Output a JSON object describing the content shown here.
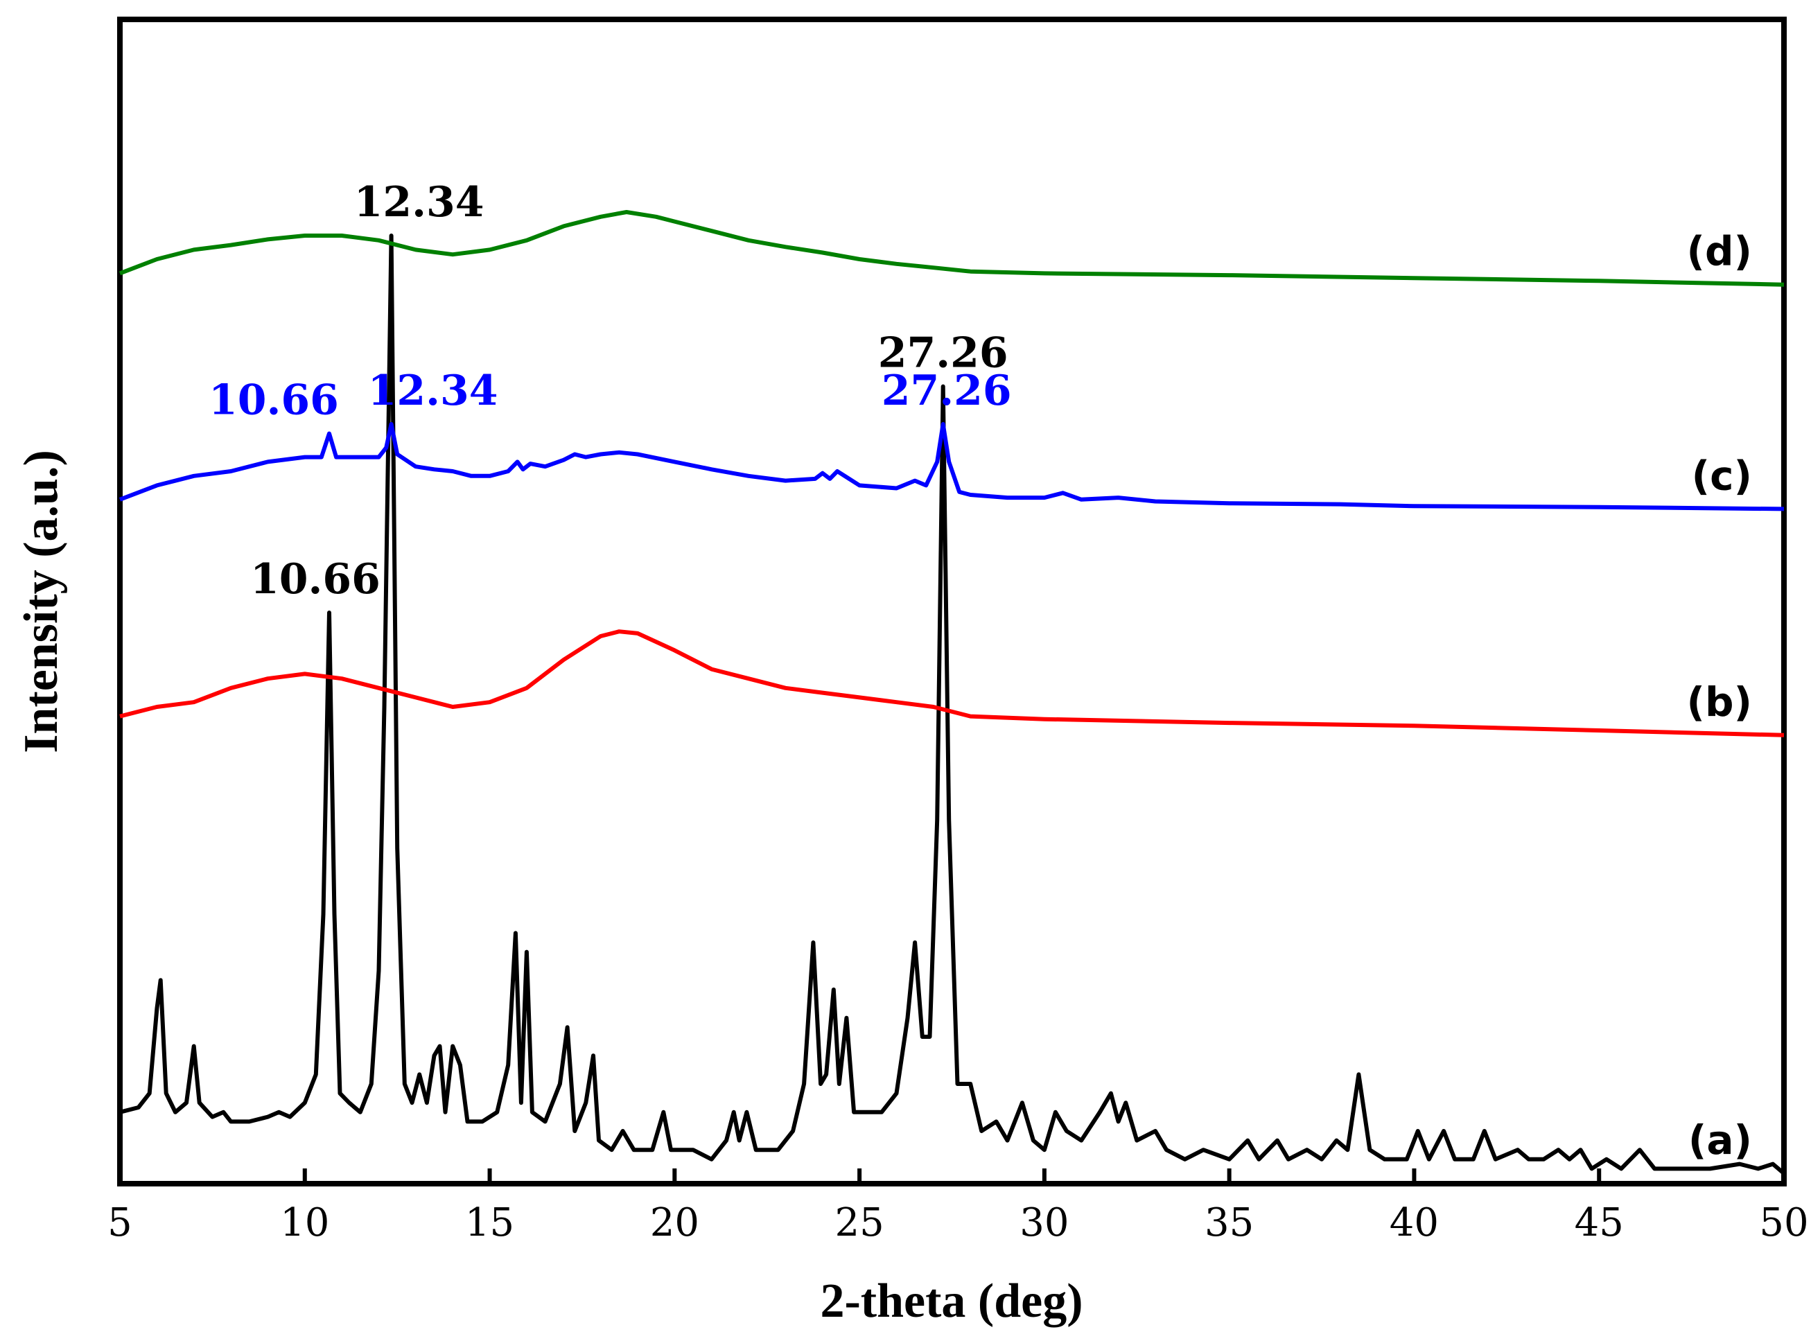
{
  "chart_data": {
    "type": "line",
    "title": "",
    "xlabel": "2-theta (deg)",
    "ylabel": "Intensity (a.u.)",
    "xlim": [
      5,
      50
    ],
    "xticks": [
      5,
      10,
      15,
      20,
      25,
      30,
      35,
      40,
      45,
      50
    ],
    "grid": false,
    "legend": "labels at right end of each trace",
    "series": [
      {
        "name": "(a)",
        "color": "#000000",
        "points": [
          [
            5,
            0.07
          ],
          [
            5.5,
            0.075
          ],
          [
            5.8,
            0.09
          ],
          [
            6.0,
            0.18
          ],
          [
            6.1,
            0.21
          ],
          [
            6.25,
            0.09
          ],
          [
            6.5,
            0.07
          ],
          [
            6.8,
            0.08
          ],
          [
            7.0,
            0.14
          ],
          [
            7.15,
            0.08
          ],
          [
            7.5,
            0.065
          ],
          [
            7.8,
            0.07
          ],
          [
            8.0,
            0.06
          ],
          [
            8.5,
            0.06
          ],
          [
            9.0,
            0.065
          ],
          [
            9.3,
            0.07
          ],
          [
            9.6,
            0.065
          ],
          [
            10.0,
            0.08
          ],
          [
            10.3,
            0.11
          ],
          [
            10.5,
            0.28
          ],
          [
            10.66,
            0.6
          ],
          [
            10.8,
            0.28
          ],
          [
            10.95,
            0.09
          ],
          [
            11.2,
            0.08
          ],
          [
            11.5,
            0.07
          ],
          [
            11.8,
            0.1
          ],
          [
            12.0,
            0.22
          ],
          [
            12.15,
            0.5
          ],
          [
            12.34,
            1.0
          ],
          [
            12.5,
            0.35
          ],
          [
            12.7,
            0.1
          ],
          [
            12.9,
            0.08
          ],
          [
            13.1,
            0.11
          ],
          [
            13.3,
            0.08
          ],
          [
            13.5,
            0.13
          ],
          [
            13.65,
            0.14
          ],
          [
            13.8,
            0.07
          ],
          [
            14.0,
            0.14
          ],
          [
            14.2,
            0.12
          ],
          [
            14.4,
            0.06
          ],
          [
            14.8,
            0.06
          ],
          [
            15.2,
            0.07
          ],
          [
            15.5,
            0.12
          ],
          [
            15.7,
            0.26
          ],
          [
            15.85,
            0.08
          ],
          [
            16.0,
            0.24
          ],
          [
            16.15,
            0.07
          ],
          [
            16.5,
            0.06
          ],
          [
            16.9,
            0.1
          ],
          [
            17.1,
            0.16
          ],
          [
            17.3,
            0.05
          ],
          [
            17.6,
            0.08
          ],
          [
            17.8,
            0.13
          ],
          [
            17.95,
            0.04
          ],
          [
            18.3,
            0.03
          ],
          [
            18.6,
            0.05
          ],
          [
            18.9,
            0.03
          ],
          [
            19.4,
            0.03
          ],
          [
            19.7,
            0.07
          ],
          [
            19.9,
            0.03
          ],
          [
            20.5,
            0.03
          ],
          [
            21.0,
            0.02
          ],
          [
            21.4,
            0.04
          ],
          [
            21.6,
            0.07
          ],
          [
            21.75,
            0.04
          ],
          [
            21.95,
            0.07
          ],
          [
            22.2,
            0.03
          ],
          [
            22.8,
            0.03
          ],
          [
            23.2,
            0.05
          ],
          [
            23.5,
            0.1
          ],
          [
            23.75,
            0.25
          ],
          [
            23.95,
            0.1
          ],
          [
            24.1,
            0.11
          ],
          [
            24.3,
            0.2
          ],
          [
            24.45,
            0.1
          ],
          [
            24.65,
            0.17
          ],
          [
            24.85,
            0.07
          ],
          [
            25.2,
            0.07
          ],
          [
            25.6,
            0.07
          ],
          [
            26.0,
            0.09
          ],
          [
            26.3,
            0.17
          ],
          [
            26.5,
            0.25
          ],
          [
            26.7,
            0.15
          ],
          [
            26.9,
            0.15
          ],
          [
            27.1,
            0.38
          ],
          [
            27.26,
            0.84
          ],
          [
            27.42,
            0.38
          ],
          [
            27.65,
            0.1
          ],
          [
            28.0,
            0.1
          ],
          [
            28.3,
            0.05
          ],
          [
            28.7,
            0.06
          ],
          [
            29.0,
            0.04
          ],
          [
            29.4,
            0.08
          ],
          [
            29.7,
            0.04
          ],
          [
            30.0,
            0.03
          ],
          [
            30.3,
            0.07
          ],
          [
            30.6,
            0.05
          ],
          [
            31.0,
            0.04
          ],
          [
            31.5,
            0.07
          ],
          [
            31.8,
            0.09
          ],
          [
            32.0,
            0.06
          ],
          [
            32.2,
            0.08
          ],
          [
            32.5,
            0.04
          ],
          [
            33.0,
            0.05
          ],
          [
            33.3,
            0.03
          ],
          [
            33.8,
            0.02
          ],
          [
            34.3,
            0.03
          ],
          [
            35.0,
            0.02
          ],
          [
            35.5,
            0.04
          ],
          [
            35.8,
            0.02
          ],
          [
            36.3,
            0.04
          ],
          [
            36.6,
            0.02
          ],
          [
            37.1,
            0.03
          ],
          [
            37.5,
            0.02
          ],
          [
            37.9,
            0.04
          ],
          [
            38.2,
            0.03
          ],
          [
            38.5,
            0.11
          ],
          [
            38.8,
            0.03
          ],
          [
            39.2,
            0.02
          ],
          [
            39.8,
            0.02
          ],
          [
            40.1,
            0.05
          ],
          [
            40.4,
            0.02
          ],
          [
            40.8,
            0.05
          ],
          [
            41.1,
            0.02
          ],
          [
            41.6,
            0.02
          ],
          [
            41.9,
            0.05
          ],
          [
            42.2,
            0.02
          ],
          [
            42.8,
            0.03
          ],
          [
            43.1,
            0.02
          ],
          [
            43.5,
            0.02
          ],
          [
            43.9,
            0.03
          ],
          [
            44.2,
            0.02
          ],
          [
            44.5,
            0.03
          ],
          [
            44.8,
            0.01
          ],
          [
            45.2,
            0.02
          ],
          [
            45.6,
            0.01
          ],
          [
            46.1,
            0.03
          ],
          [
            46.5,
            0.01
          ],
          [
            47.2,
            0.01
          ],
          [
            48.0,
            0.01
          ],
          [
            48.8,
            0.015
          ],
          [
            49.3,
            0.01
          ],
          [
            49.7,
            0.015
          ],
          [
            50,
            0.005
          ]
        ]
      },
      {
        "name": "(b)",
        "color": "#ff0000",
        "points": [
          [
            5,
            0.49
          ],
          [
            6,
            0.5
          ],
          [
            7,
            0.505
          ],
          [
            8,
            0.52
          ],
          [
            9,
            0.53
          ],
          [
            10,
            0.535
          ],
          [
            11,
            0.53
          ],
          [
            12,
            0.52
          ],
          [
            13,
            0.51
          ],
          [
            14,
            0.5
          ],
          [
            15,
            0.505
          ],
          [
            16,
            0.52
          ],
          [
            17,
            0.55
          ],
          [
            18,
            0.575
          ],
          [
            18.5,
            0.58
          ],
          [
            19,
            0.578
          ],
          [
            20,
            0.56
          ],
          [
            21,
            0.54
          ],
          [
            22,
            0.53
          ],
          [
            23,
            0.52
          ],
          [
            24,
            0.515
          ],
          [
            25,
            0.51
          ],
          [
            26,
            0.505
          ],
          [
            27,
            0.5
          ],
          [
            28,
            0.49
          ],
          [
            30,
            0.487
          ],
          [
            35,
            0.483
          ],
          [
            40,
            0.48
          ],
          [
            45,
            0.475
          ],
          [
            50,
            0.47
          ]
        ]
      },
      {
        "name": "(c)",
        "color": "#0000ff",
        "points": [
          [
            5,
            0.72
          ],
          [
            6,
            0.735
          ],
          [
            7,
            0.745
          ],
          [
            8,
            0.75
          ],
          [
            9,
            0.76
          ],
          [
            10,
            0.765
          ],
          [
            10.45,
            0.765
          ],
          [
            10.66,
            0.79
          ],
          [
            10.85,
            0.765
          ],
          [
            11.2,
            0.765
          ],
          [
            12.0,
            0.765
          ],
          [
            12.2,
            0.775
          ],
          [
            12.34,
            0.8
          ],
          [
            12.5,
            0.768
          ],
          [
            13,
            0.755
          ],
          [
            13.5,
            0.752
          ],
          [
            14,
            0.75
          ],
          [
            14.5,
            0.745
          ],
          [
            15,
            0.745
          ],
          [
            15.5,
            0.75
          ],
          [
            15.75,
            0.76
          ],
          [
            15.9,
            0.752
          ],
          [
            16.1,
            0.758
          ],
          [
            16.5,
            0.755
          ],
          [
            17,
            0.762
          ],
          [
            17.3,
            0.768
          ],
          [
            17.6,
            0.765
          ],
          [
            18,
            0.768
          ],
          [
            18.5,
            0.77
          ],
          [
            19,
            0.768
          ],
          [
            20,
            0.76
          ],
          [
            21,
            0.752
          ],
          [
            22,
            0.745
          ],
          [
            23,
            0.74
          ],
          [
            23.8,
            0.742
          ],
          [
            24.0,
            0.748
          ],
          [
            24.2,
            0.742
          ],
          [
            24.4,
            0.75
          ],
          [
            24.6,
            0.745
          ],
          [
            25,
            0.735
          ],
          [
            26,
            0.732
          ],
          [
            26.5,
            0.74
          ],
          [
            26.8,
            0.735
          ],
          [
            27.1,
            0.76
          ],
          [
            27.26,
            0.8
          ],
          [
            27.42,
            0.76
          ],
          [
            27.7,
            0.728
          ],
          [
            28,
            0.725
          ],
          [
            29,
            0.722
          ],
          [
            30,
            0.722
          ],
          [
            30.5,
            0.727
          ],
          [
            31,
            0.72
          ],
          [
            32,
            0.722
          ],
          [
            33,
            0.718
          ],
          [
            35,
            0.716
          ],
          [
            38,
            0.715
          ],
          [
            40,
            0.713
          ],
          [
            45,
            0.712
          ],
          [
            50,
            0.71
          ]
        ]
      },
      {
        "name": "(d)",
        "color": "#008000",
        "points": [
          [
            5,
            0.96
          ],
          [
            6,
            0.975
          ],
          [
            7,
            0.985
          ],
          [
            8,
            0.99
          ],
          [
            9,
            0.996
          ],
          [
            10,
            1.0
          ],
          [
            11,
            1.0
          ],
          [
            12,
            0.995
          ],
          [
            13,
            0.985
          ],
          [
            14,
            0.98
          ],
          [
            15,
            0.985
          ],
          [
            16,
            0.995
          ],
          [
            17,
            1.01
          ],
          [
            18,
            1.02
          ],
          [
            18.7,
            1.025
          ],
          [
            19.5,
            1.02
          ],
          [
            20,
            1.015
          ],
          [
            21,
            1.005
          ],
          [
            22,
            0.995
          ],
          [
            23,
            0.988
          ],
          [
            24,
            0.982
          ],
          [
            25,
            0.975
          ],
          [
            26,
            0.97
          ],
          [
            27,
            0.966
          ],
          [
            28,
            0.962
          ],
          [
            30,
            0.96
          ],
          [
            35,
            0.958
          ],
          [
            40,
            0.955
          ],
          [
            45,
            0.952
          ],
          [
            50,
            0.948
          ]
        ]
      }
    ],
    "annotations": [
      {
        "series": "(a)",
        "text": "10.66",
        "x": 10.66,
        "color": "#000000"
      },
      {
        "series": "(a)",
        "text": "12.34",
        "x": 12.34,
        "color": "#000000"
      },
      {
        "series": "(a)",
        "text": "27.26",
        "x": 27.26,
        "color": "#000000"
      },
      {
        "series": "(c)",
        "text": "10.66",
        "x": 10.66,
        "color": "#0000ff"
      },
      {
        "series": "(c)",
        "text": "12.34",
        "x": 12.34,
        "color": "#0000ff"
      },
      {
        "series": "(c)",
        "text": "27.26",
        "x": 27.26,
        "color": "#0000ff"
      }
    ]
  }
}
